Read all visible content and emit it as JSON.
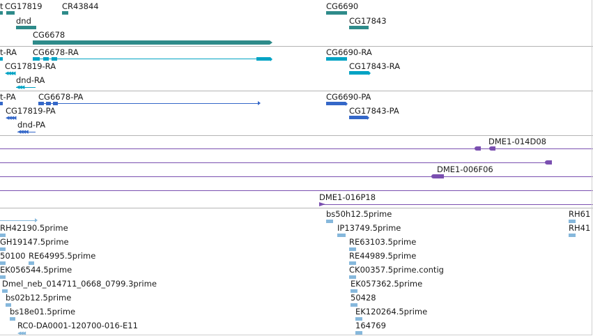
{
  "colors": {
    "gene": "#2e8b8a",
    "rna": "#00a3c4",
    "protein": "#3467c8",
    "bac": "#7a4fb0",
    "est": "#86b8dc",
    "separator": "#b4b4b4"
  },
  "gene_track": {
    "labels": [
      "t",
      "CG17819",
      "CR43844",
      "dnd",
      "CG6678",
      "CG6690",
      "CG17843"
    ]
  },
  "transcript_track": {
    "labels": [
      "t-RA",
      "CG6678-RA",
      "CG17819-RA",
      "dnd-RA",
      "CG6690-RA",
      "CG17843-RA"
    ]
  },
  "protein_track": {
    "labels": [
      "t-PA",
      "CG6678-PA",
      "CG17819-PA",
      "dnd-PA",
      "CG6690-PA",
      "CG17843-PA"
    ]
  },
  "bac_track": {
    "labels": [
      "DME1-014D08",
      "DME1-006F06",
      "DME1-016P18"
    ]
  },
  "est_track": {
    "left": [
      "RH42190.5prime",
      "GH19147.5prime",
      "50100",
      "RE64995.5prime",
      "EK056544.5prime",
      "Dmel_neb_014711_0668_0799.3prime",
      "bs02b12.5prime",
      "bs18e01.5prime",
      "RC0-DA0001-120700-016-E11"
    ],
    "middle": [
      "bs50h12.5prime",
      "IP13749.5prime",
      "RE63103.5prime",
      "RE44989.5prime",
      "CK00357.5prime.contig",
      "EK057362.5prime",
      "50428",
      "EK120264.5prime",
      "164769"
    ],
    "right": [
      "RH61",
      "RH41"
    ]
  }
}
